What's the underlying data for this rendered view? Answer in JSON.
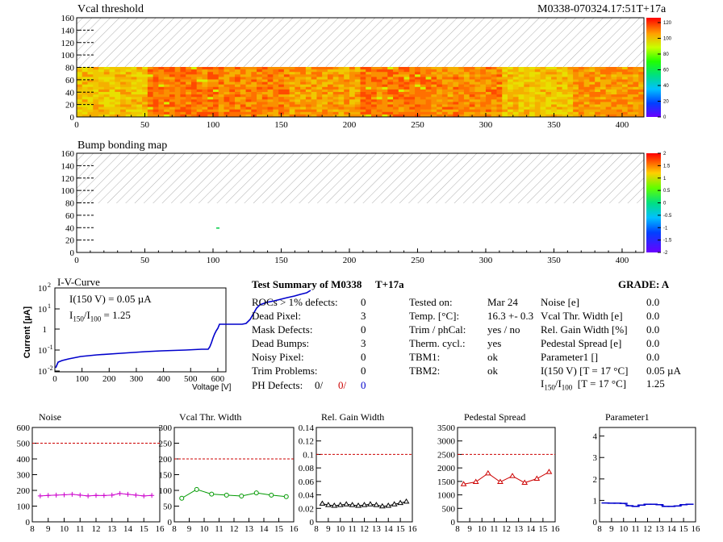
{
  "header": {
    "vcal_title": "Vcal threshold",
    "module_id": "M0338-070324.17:51T+17a",
    "bump_title": "Bump bonding map"
  },
  "heatmaps": {
    "x_ticks": [
      "0",
      "50",
      "100",
      "150",
      "200",
      "250",
      "300",
      "350",
      "400"
    ],
    "y_ticks": [
      "0",
      "20",
      "40",
      "60",
      "80",
      "100",
      "120",
      "140",
      "160"
    ],
    "vcal_scale_ticks": [
      "0",
      "20",
      "40",
      "60",
      "80",
      "100",
      "120"
    ],
    "bump_scale_ticks": [
      "-2",
      "-1.5",
      "-1",
      "-0.5",
      "0",
      "0.5",
      "1",
      "1.5",
      "2"
    ],
    "vcal_block_boundaries": [
      0,
      52,
      104,
      156,
      208,
      260,
      312,
      364,
      416
    ]
  },
  "iv": {
    "title": "I-V-Curve",
    "ylabel": "Current [µA]",
    "xlabel": "Voltage [V]",
    "ann1": "I(150 V) = 0.05 µA",
    "ann2_prefix": "I",
    "ann2_sub1": "150",
    "ann2_mid": "/I",
    "ann2_sub2": "100",
    "ann2_value": "=  1.25",
    "x_ticks": [
      "0",
      "100",
      "200",
      "300",
      "400",
      "500",
      "600"
    ],
    "y_ticks": [
      "10",
      "10",
      "1",
      "10",
      "10"
    ],
    "y_tick_exps": [
      "2",
      "1",
      "",
      "-1",
      "-2"
    ]
  },
  "summary": {
    "title": "Test Summary of M0338",
    "title_tag": "T+17a",
    "grade": "GRADE:  A",
    "col1": [
      {
        "label": "ROCs > 1% defects:",
        "value": "0"
      },
      {
        "label": "Dead Pixel:",
        "value": "3"
      },
      {
        "label": "Mask Defects:",
        "value": "0"
      },
      {
        "label": "Dead Bumps:",
        "value": "3"
      },
      {
        "label": "Noisy Pixel:",
        "value": "0"
      },
      {
        "label": "Trim Problems:",
        "value": "0"
      }
    ],
    "ph_label": "PH Defects:",
    "ph_values": [
      "0/",
      "0/",
      "0"
    ],
    "ph_colors": [
      "#000000",
      "#cc0000",
      "#0000cc"
    ],
    "col2": [
      {
        "label": "Tested on:",
        "value": "Mar 24"
      },
      {
        "label": "Temp. [°C]:",
        "value": "16.3 +- 0.3"
      },
      {
        "label": "Trim / phCal:",
        "value": "yes / no"
      },
      {
        "label": "Therm. cycl.:",
        "value": "yes"
      },
      {
        "label": "TBM1:",
        "value": "ok"
      },
      {
        "label": "TBM2:",
        "value": "ok"
      }
    ],
    "col3": [
      {
        "label": "Noise [e]",
        "value": "0.0"
      },
      {
        "label": "Vcal Thr. Width [e]",
        "value": "0.0"
      },
      {
        "label": "Rel. Gain Width [%]",
        "value": "0.0"
      },
      {
        "label": "Pedestal Spread [e]",
        "value": "0.0"
      },
      {
        "label": "Parameter1 []",
        "value": "0.0"
      },
      {
        "label": "I(150 V) [T = 17 °C]",
        "value": "0.05 µA"
      }
    ],
    "ratio_label": "[T = 17 °C]",
    "ratio_value": "1.25"
  },
  "chart_data": [
    {
      "type": "line",
      "title": "Noise",
      "x": [
        8.5,
        9,
        9.5,
        10,
        10.5,
        11,
        11.5,
        12,
        12.5,
        13,
        13.5,
        14,
        14.5,
        15,
        15.5
      ],
      "values": [
        165,
        168,
        170,
        172,
        175,
        170,
        165,
        168,
        167,
        170,
        180,
        175,
        170,
        165,
        168
      ],
      "xlim": [
        8,
        16
      ],
      "ylim": [
        0,
        600
      ],
      "y_ticks": [
        0,
        100,
        200,
        300,
        400,
        500,
        600
      ],
      "x_ticks": [
        8,
        9,
        10,
        11,
        12,
        13,
        14,
        15,
        16
      ],
      "threshold": 500,
      "color": "#cc00cc",
      "marker": "plus"
    },
    {
      "type": "line",
      "title": "Vcal Thr. Width",
      "x": [
        8.5,
        9.5,
        10.5,
        11.5,
        12.5,
        13.5,
        14.5,
        15.5
      ],
      "values": [
        75,
        103,
        88,
        85,
        82,
        92,
        85,
        80
      ],
      "xlim": [
        8,
        16
      ],
      "ylim": [
        0,
        300
      ],
      "y_ticks": [
        0,
        50,
        100,
        150,
        200,
        250,
        300
      ],
      "x_ticks": [
        8,
        9,
        10,
        11,
        12,
        13,
        14,
        15,
        16
      ],
      "threshold": 200,
      "color": "#009900",
      "marker": "circle"
    },
    {
      "type": "line",
      "title": "Rel. Gain Width",
      "x": [
        8.5,
        9,
        9.5,
        10,
        10.5,
        11,
        11.5,
        12,
        12.5,
        13,
        13.5,
        14,
        14.5,
        15,
        15.5
      ],
      "values": [
        0.027,
        0.025,
        0.024,
        0.025,
        0.026,
        0.025,
        0.024,
        0.025,
        0.026,
        0.025,
        0.023,
        0.024,
        0.026,
        0.028,
        0.03
      ],
      "xlim": [
        8,
        16
      ],
      "ylim": [
        0,
        0.14
      ],
      "y_ticks": [
        0,
        0.02,
        0.04,
        0.06,
        0.08,
        0.1,
        0.12,
        0.14
      ],
      "x_ticks": [
        8,
        9,
        10,
        11,
        12,
        13,
        14,
        15,
        16
      ],
      "threshold": 0.1,
      "color": "#000000",
      "marker": "triangle"
    },
    {
      "type": "line",
      "title": "Pedestal Spread",
      "x": [
        8.5,
        9.5,
        10.5,
        11.5,
        12.5,
        13.5,
        14.5,
        15.5
      ],
      "values": [
        1400,
        1480,
        1800,
        1480,
        1700,
        1450,
        1600,
        1850
      ],
      "xlim": [
        8,
        16
      ],
      "ylim": [
        0,
        3500
      ],
      "y_ticks": [
        0,
        500,
        1000,
        1500,
        2000,
        2500,
        3000,
        3500
      ],
      "x_ticks": [
        8,
        9,
        10,
        11,
        12,
        13,
        14,
        15,
        16
      ],
      "threshold": 2500,
      "color": "#cc0000",
      "marker": "triangle"
    },
    {
      "type": "line",
      "title": "Parameter1",
      "x": [
        8.5,
        9,
        9.5,
        10,
        10.5,
        11,
        11.5,
        12,
        12.5,
        13,
        13.5,
        14,
        14.5,
        15,
        15.5
      ],
      "values": [
        0.88,
        0.87,
        0.87,
        0.86,
        0.75,
        0.72,
        0.78,
        0.82,
        0.82,
        0.8,
        0.72,
        0.72,
        0.74,
        0.8,
        0.82
      ],
      "xlim": [
        8,
        16
      ],
      "ylim": [
        0,
        4.4
      ],
      "y_ticks": [
        0,
        1,
        2,
        3,
        4
      ],
      "x_ticks": [
        8,
        9,
        10,
        11,
        12,
        13,
        14,
        15,
        16
      ],
      "threshold": null,
      "color": "#0000cc",
      "marker": "hbar"
    }
  ]
}
